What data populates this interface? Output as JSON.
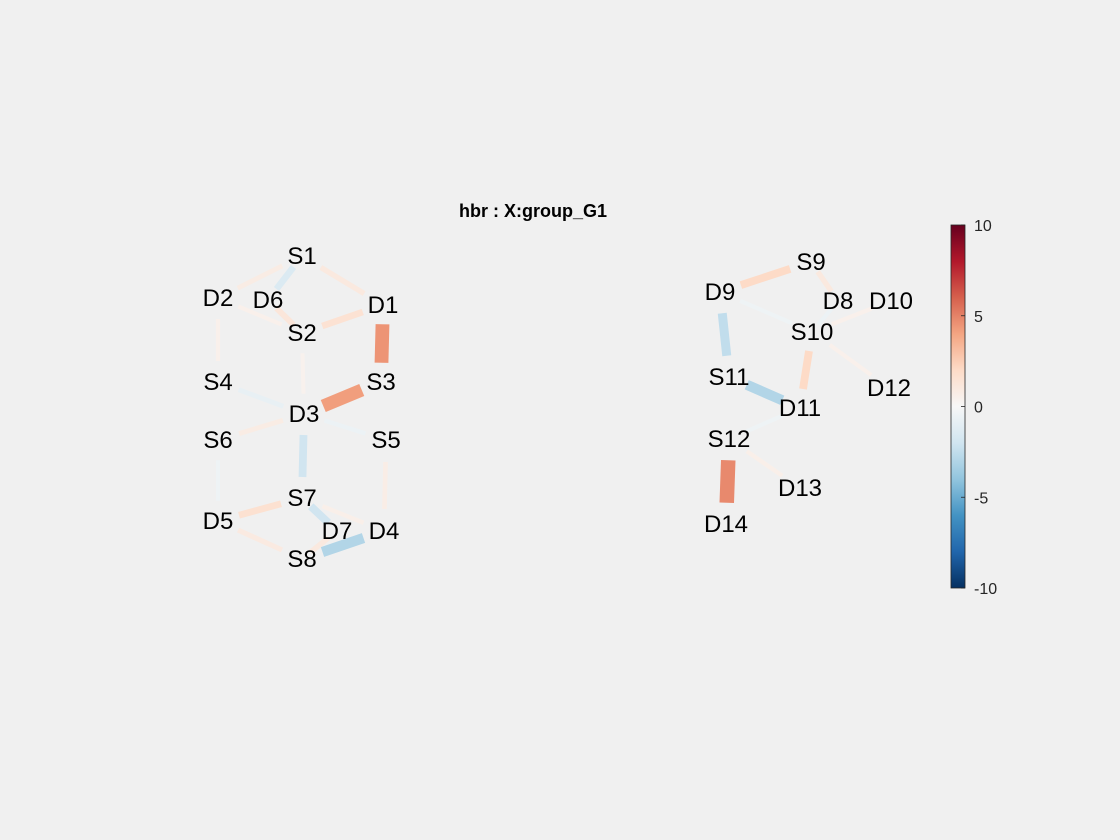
{
  "title": "hbr : X:group_G1",
  "colorbar": {
    "ticks": [
      {
        "value": 10,
        "label": "10"
      },
      {
        "value": 5,
        "label": "5"
      },
      {
        "value": 0,
        "label": "0"
      },
      {
        "value": -5,
        "label": "-5"
      },
      {
        "value": -10,
        "label": "-10"
      }
    ],
    "range": [
      -10,
      10
    ],
    "colormap": "red-blue diverging"
  },
  "colors": {
    "background": "#f0f0f0",
    "positive_max": "#67001f",
    "negative_max": "#053061",
    "zero": "#f7f7f7"
  },
  "nodes": {
    "S1": "S1",
    "S2": "S2",
    "S3": "S3",
    "S4": "S4",
    "S5": "S5",
    "S6": "S6",
    "S7": "S7",
    "S8": "S8",
    "S9": "S9",
    "S10": "S10",
    "S11": "S11",
    "S12": "S12",
    "D1": "D1",
    "D2": "D2",
    "D3": "D3",
    "D4": "D4",
    "D5": "D5",
    "D6": "D6",
    "D7": "D7",
    "D8": "D8",
    "D9": "D9",
    "D10": "D10",
    "D11": "D11",
    "D12": "D12",
    "D13": "D13",
    "D14": "D14"
  },
  "channels": [
    {
      "from": "S1",
      "to": "D2",
      "value": 0.8
    },
    {
      "from": "S1",
      "to": "D6",
      "value": -1.5
    },
    {
      "from": "S1",
      "to": "D1",
      "value": 1.0
    },
    {
      "from": "S2",
      "to": "D6",
      "value": 1.2
    },
    {
      "from": "S2",
      "to": "D1",
      "value": 1.5
    },
    {
      "from": "S2",
      "to": "D2",
      "value": 0.5
    },
    {
      "from": "S2",
      "to": "D3",
      "value": 0.4
    },
    {
      "from": "S3",
      "to": "D1",
      "value": 4.5
    },
    {
      "from": "S3",
      "to": "D3",
      "value": 4.2
    },
    {
      "from": "S4",
      "to": "D2",
      "value": 0.5
    },
    {
      "from": "S4",
      "to": "D3",
      "value": -0.8
    },
    {
      "from": "S5",
      "to": "D3",
      "value": -0.6
    },
    {
      "from": "S5",
      "to": "D4",
      "value": 0.7
    },
    {
      "from": "S6",
      "to": "D3",
      "value": 0.8
    },
    {
      "from": "S6",
      "to": "D5",
      "value": -0.5
    },
    {
      "from": "S7",
      "to": "D3",
      "value": -2.0
    },
    {
      "from": "S7",
      "to": "D5",
      "value": 1.6
    },
    {
      "from": "S7",
      "to": "D7",
      "value": -2.0
    },
    {
      "from": "S7",
      "to": "D4",
      "value": 0.6
    },
    {
      "from": "S8",
      "to": "D5",
      "value": 0.9
    },
    {
      "from": "S8",
      "to": "D7",
      "value": 1.0
    },
    {
      "from": "S8",
      "to": "D4",
      "value": -3.0
    },
    {
      "from": "S9",
      "to": "D9",
      "value": 2.0
    },
    {
      "from": "S9",
      "to": "D8",
      "value": 1.0
    },
    {
      "from": "S10",
      "to": "D8",
      "value": -0.6
    },
    {
      "from": "S10",
      "to": "D9",
      "value": -0.5
    },
    {
      "from": "S10",
      "to": "D11",
      "value": 2.0
    },
    {
      "from": "S10",
      "to": "D10",
      "value": 0.5
    },
    {
      "from": "S10",
      "to": "D12",
      "value": 0.5
    },
    {
      "from": "S11",
      "to": "D9",
      "value": -2.5
    },
    {
      "from": "S11",
      "to": "D11",
      "value": -3.0
    },
    {
      "from": "S12",
      "to": "D11",
      "value": -0.5
    },
    {
      "from": "S12",
      "to": "D14",
      "value": 4.8
    },
    {
      "from": "S12",
      "to": "D13",
      "value": 0.6
    }
  ]
}
